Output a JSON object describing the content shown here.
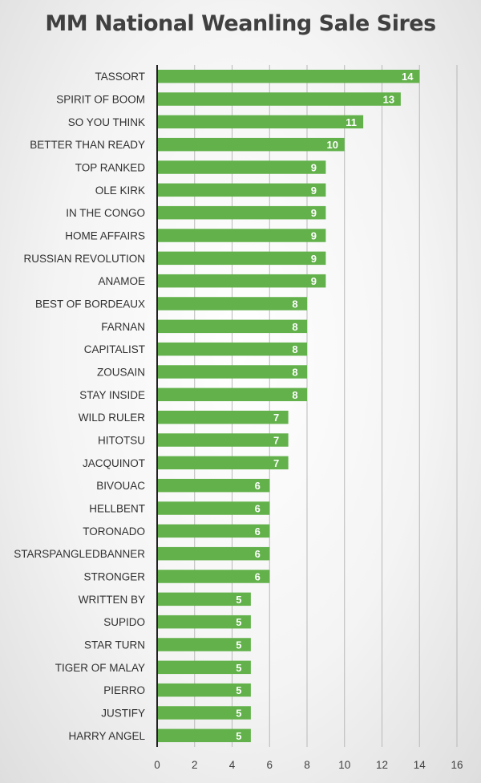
{
  "colors": {
    "bar": "#62b14a",
    "gridline": "#b8b8b8",
    "axis": "#222222",
    "title": "#404040",
    "value_label": "#ffffff"
  },
  "chart_data": {
    "type": "bar",
    "orientation": "horizontal",
    "title": "MM National Weanling Sale Sires",
    "xlabel": "",
    "ylabel": "",
    "xlim": [
      0,
      16
    ],
    "x_ticks": [
      0,
      2,
      4,
      6,
      8,
      10,
      12,
      14,
      16
    ],
    "grid": "vertical",
    "legend": "none",
    "data_labels": "inside-end",
    "categories": [
      "TASSORT",
      "SPIRIT OF BOOM",
      "SO YOU THINK",
      "BETTER THAN READY",
      "TOP RANKED",
      "OLE KIRK",
      "IN THE CONGO",
      "HOME AFFAIRS",
      "RUSSIAN REVOLUTION",
      "ANAMOE",
      "BEST OF BORDEAUX",
      "FARNAN",
      "CAPITALIST",
      "ZOUSAIN",
      "STAY INSIDE",
      "WILD RULER",
      "HITOTSU",
      "JACQUINOT",
      "BIVOUAC",
      "HELLBENT",
      "TORONADO",
      "STARSPANGLEDBANNER",
      "STRONGER",
      "WRITTEN BY",
      "SUPIDO",
      "STAR TURN",
      "TIGER OF MALAY",
      "PIERRO",
      "JUSTIFY",
      "HARRY ANGEL"
    ],
    "values": [
      14,
      13,
      11,
      10,
      9,
      9,
      9,
      9,
      9,
      9,
      8,
      8,
      8,
      8,
      8,
      7,
      7,
      7,
      6,
      6,
      6,
      6,
      6,
      5,
      5,
      5,
      5,
      5,
      5,
      5
    ]
  }
}
